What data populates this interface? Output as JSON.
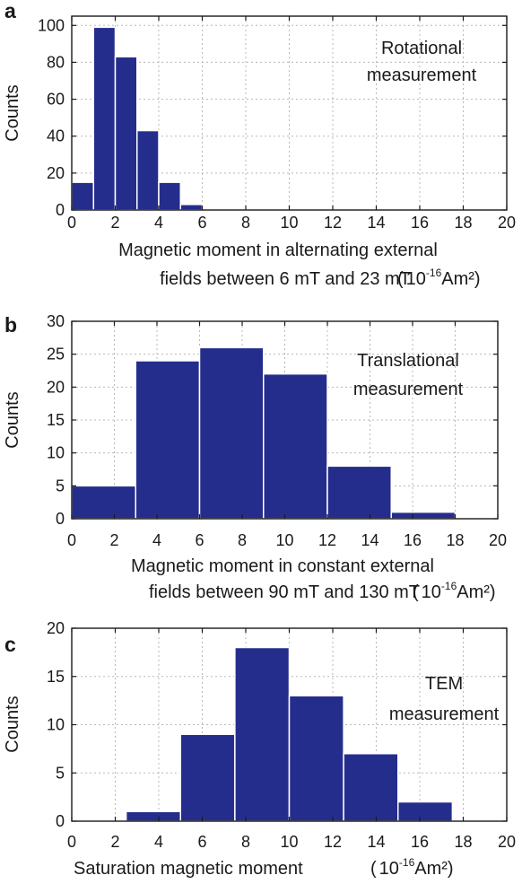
{
  "chart_data": [
    {
      "type": "bar",
      "panel_label": "a",
      "annotation": [
        "Rotational",
        "measurement"
      ],
      "ylabel": "Counts",
      "xlabel_lines": [
        "Magnetic moment in alternating external",
        "fields between 6 mT and 23 mT"
      ],
      "unit": {
        "open": "(",
        "base": "10",
        "exponent": "-16",
        "rest": "Am²)"
      },
      "xlim": [
        0,
        20
      ],
      "ylim": [
        0,
        105
      ],
      "xticks": [
        0,
        2,
        4,
        6,
        8,
        10,
        12,
        14,
        16,
        18,
        20
      ],
      "yticks": [
        0,
        20,
        40,
        60,
        80,
        100
      ],
      "grid": true,
      "bins": [
        [
          0,
          1
        ],
        [
          1,
          2
        ],
        [
          2,
          3
        ],
        [
          3,
          4
        ],
        [
          4,
          5
        ],
        [
          5,
          6
        ]
      ],
      "values": [
        15,
        99,
        83,
        43,
        15,
        3
      ],
      "color": "#252d8c"
    },
    {
      "type": "bar",
      "panel_label": "b",
      "annotation": [
        "Translational",
        "measurement"
      ],
      "ylabel": "Counts",
      "xlabel_lines": [
        "Magnetic moment in constant external",
        "fields between 90 mT and 130 mT"
      ],
      "unit": {
        "open": "(",
        "base": "10",
        "exponent": "-16",
        "rest": "Am²)"
      },
      "xlim": [
        0,
        20
      ],
      "ylim": [
        0,
        30
      ],
      "xticks": [
        0,
        2,
        4,
        6,
        8,
        10,
        12,
        14,
        16,
        18,
        20
      ],
      "yticks": [
        0,
        5,
        10,
        15,
        20,
        25,
        30
      ],
      "grid": true,
      "bins": [
        [
          0,
          3
        ],
        [
          3,
          6
        ],
        [
          6,
          9
        ],
        [
          9,
          12
        ],
        [
          12,
          15
        ],
        [
          15,
          18
        ]
      ],
      "values": [
        5,
        24,
        26,
        22,
        8,
        1
      ],
      "color": "#252d8c"
    },
    {
      "type": "bar",
      "panel_label": "c",
      "annotation": [
        "TEM",
        "measurement"
      ],
      "ylabel": "Counts",
      "xlabel_lines": [
        "Saturation magnetic moment"
      ],
      "unit": {
        "open": "(",
        "base": "10",
        "exponent": "-16",
        "rest": "Am²)"
      },
      "xlim": [
        0,
        20
      ],
      "ylim": [
        0,
        20
      ],
      "xticks": [
        0,
        2,
        4,
        6,
        8,
        10,
        12,
        14,
        16,
        18,
        20
      ],
      "yticks": [
        0,
        5,
        10,
        15,
        20
      ],
      "grid": true,
      "bins": [
        [
          2.5,
          5
        ],
        [
          5,
          7.5
        ],
        [
          7.5,
          10
        ],
        [
          10,
          12.5
        ],
        [
          12.5,
          15
        ],
        [
          15,
          17.5
        ]
      ],
      "values": [
        1,
        9,
        18,
        13,
        7,
        2
      ],
      "color": "#252d8c"
    }
  ]
}
